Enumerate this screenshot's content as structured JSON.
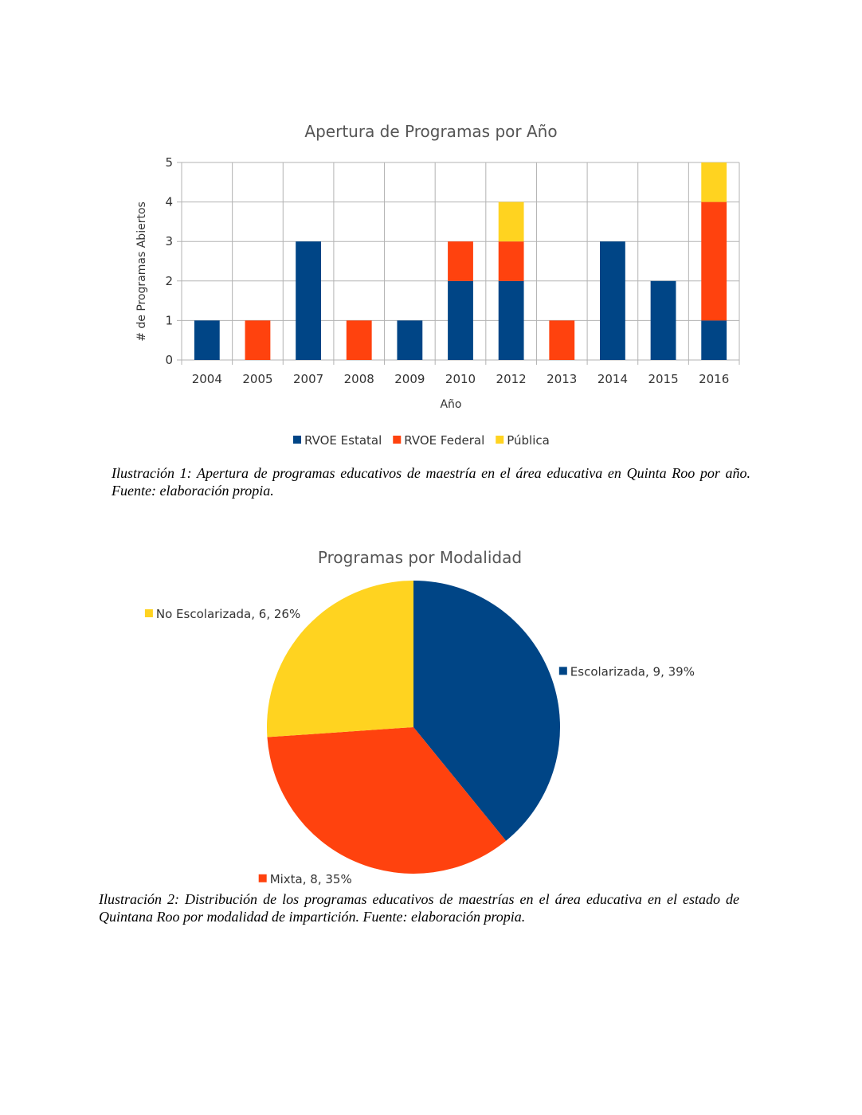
{
  "chart_data": [
    {
      "type": "bar",
      "stacked": true,
      "title": "Apertura de Programas por Año",
      "xlabel": "Año",
      "ylabel": "# de Programas Abiertos",
      "ylim": [
        0,
        5
      ],
      "yticks": [
        "0",
        "1",
        "2",
        "3",
        "4",
        "5"
      ],
      "grid": true,
      "legend_position": "bottom",
      "categories": [
        "2004",
        "2005",
        "2007",
        "2008",
        "2009",
        "2010",
        "2012",
        "2013",
        "2014",
        "2015",
        "2016"
      ],
      "series": [
        {
          "name": "RVOE Estatal",
          "color": "#004586",
          "values": [
            1,
            0,
            3,
            0,
            1,
            2,
            2,
            0,
            3,
            2,
            1
          ]
        },
        {
          "name": "RVOE Federal",
          "color": "#ff420e",
          "values": [
            0,
            1,
            0,
            1,
            0,
            1,
            1,
            1,
            0,
            0,
            3
          ]
        },
        {
          "name": "Pública",
          "color": "#ffd320",
          "values": [
            0,
            0,
            0,
            0,
            0,
            0,
            1,
            0,
            0,
            0,
            1
          ]
        }
      ]
    },
    {
      "type": "pie",
      "title": "Programas por Modalidad",
      "slices": [
        {
          "name": "Escolarizada",
          "value": 9,
          "percent": 39,
          "color": "#004586",
          "label": "Escolarizada, 9, 39%"
        },
        {
          "name": "Mixta",
          "value": 8,
          "percent": 35,
          "color": "#ff420e",
          "label": "Mixta, 8, 35%"
        },
        {
          "name": "No Escolarizada",
          "value": 6,
          "percent": 26,
          "color": "#ffd320",
          "label": "No Escolarizada, 6, 26%"
        }
      ]
    }
  ],
  "captions": {
    "figure_1": "Ilustración 1: Apertura de programas educativos de maestría en el área educativa en Quinta Roo por año. Fuente: elaboración propia.",
    "figure_2": "Ilustración 2: Distribución de los programas educativos de maestrías en el área educativa en el estado de Quintana Roo por modalidad de impartición. Fuente: elaboración propia."
  }
}
